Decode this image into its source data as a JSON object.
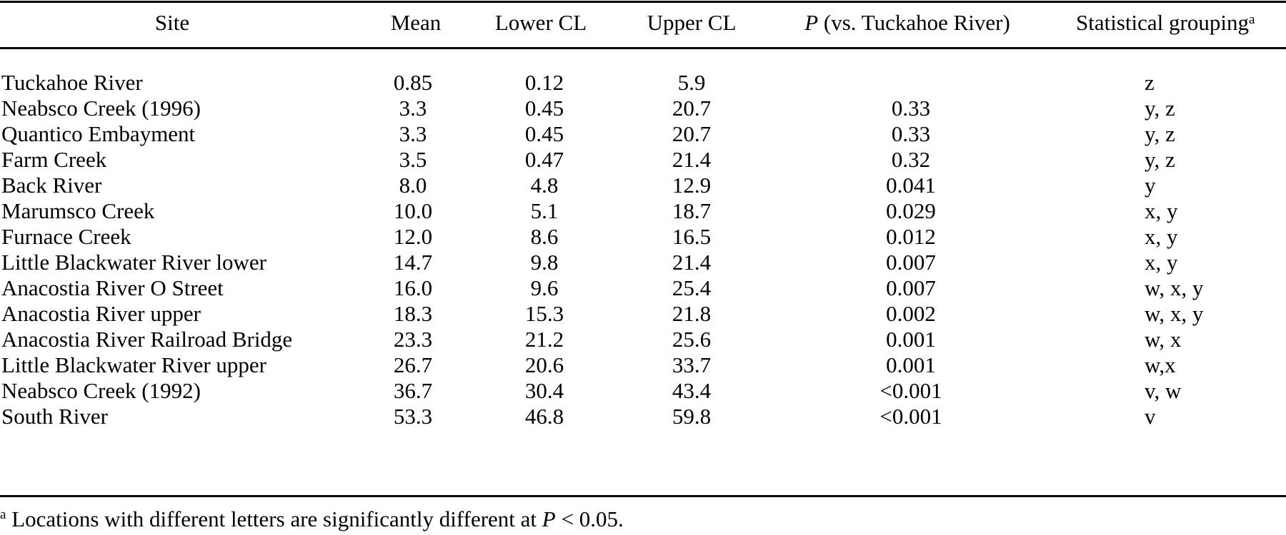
{
  "table": {
    "headers": {
      "site": "Site",
      "mean": "Mean",
      "lower_cl": "Lower CL",
      "upper_cl": "Upper CL",
      "p_symbol": "P",
      "p_rest": " (vs. Tuckahoe River)",
      "grouping": "Statistical grouping",
      "grouping_marker": "a"
    },
    "rows": [
      {
        "site": "Tuckahoe River",
        "mean": "0.85",
        "lower": "0.12",
        "upper": "5.9",
        "p": "",
        "group": "z"
      },
      {
        "site": "Neabsco Creek (1996)",
        "mean": "3.3",
        "lower": "0.45",
        "upper": "20.7",
        "p": "0.33",
        "group": "y, z"
      },
      {
        "site": "Quantico Embayment",
        "mean": "3.3",
        "lower": "0.45",
        "upper": "20.7",
        "p": "0.33",
        "group": "y, z"
      },
      {
        "site": "Farm Creek",
        "mean": "3.5",
        "lower": "0.47",
        "upper": "21.4",
        "p": "0.32",
        "group": "y, z"
      },
      {
        "site": "Back River",
        "mean": "8.0",
        "lower": "4.8",
        "upper": "12.9",
        "p": "0.041",
        "group": "y"
      },
      {
        "site": "Marumsco Creek",
        "mean": "10.0",
        "lower": "5.1",
        "upper": "18.7",
        "p": "0.029",
        "group": "x, y"
      },
      {
        "site": "Furnace Creek",
        "mean": "12.0",
        "lower": "8.6",
        "upper": "16.5",
        "p": "0.012",
        "group": "x, y"
      },
      {
        "site": "Little Blackwater River lower",
        "mean": "14.7",
        "lower": "9.8",
        "upper": "21.4",
        "p": "0.007",
        "group": "x, y"
      },
      {
        "site": "Anacostia River O Street",
        "mean": "16.0",
        "lower": "9.6",
        "upper": "25.4",
        "p": "0.007",
        "group": "w, x, y"
      },
      {
        "site": "Anacostia River upper",
        "mean": "18.3",
        "lower": "15.3",
        "upper": "21.8",
        "p": "0.002",
        "group": "w, x, y"
      },
      {
        "site": "Anacostia River Railroad Bridge",
        "mean": "23.3",
        "lower": "21.2",
        "upper": "25.6",
        "p": "0.001",
        "group": "w, x"
      },
      {
        "site": "Little Blackwater River upper",
        "mean": "26.7",
        "lower": "20.6",
        "upper": "33.7",
        "p": "0.001",
        "group": "w,x"
      },
      {
        "site": "Neabsco Creek (1992)",
        "mean": "36.7",
        "lower": "30.4",
        "upper": "43.4",
        "p": "<0.001",
        "group": "v, w"
      },
      {
        "site": "South River",
        "mean": "53.3",
        "lower": "46.8",
        "upper": "59.8",
        "p": "<0.001",
        "group": "v"
      }
    ]
  },
  "footnote": {
    "marker": "a",
    "text_before": " Locations with different letters are significantly different at ",
    "p_symbol": "P",
    "text_after": " < 0.05."
  }
}
